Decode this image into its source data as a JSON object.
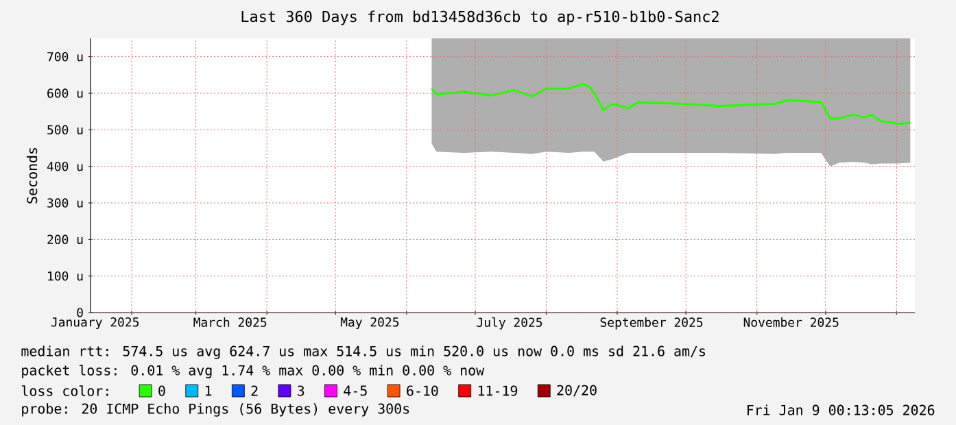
{
  "chart_data": {
    "type": "line",
    "title": "Last 360 Days from bd13458d36cb to ap-r510-b1b0-Sanc2",
    "ylabel": "Seconds",
    "xlim": [
      "2025-01-14",
      "2026-01-09"
    ],
    "xticks": [
      {
        "value": "2025-02-01",
        "label": null
      },
      {
        "value": "2025-03-01",
        "label": null
      },
      {
        "value": "2025-04-01",
        "label": null
      },
      {
        "value": "2025-05-01",
        "label": null
      },
      {
        "value": "2025-06-01",
        "label": null
      },
      {
        "value": "2025-07-01",
        "label": null
      },
      {
        "value": "2025-08-01",
        "label": null
      },
      {
        "value": "2025-09-01",
        "label": null
      },
      {
        "value": "2025-10-01",
        "label": null
      },
      {
        "value": "2025-11-01",
        "label": null
      },
      {
        "value": "2025-12-01",
        "label": null
      },
      {
        "value": "2026-01-01",
        "label": null
      },
      {
        "value": "2025-01-16",
        "label": "January 2025"
      },
      {
        "value": "2025-03-16",
        "label": "March 2025"
      },
      {
        "value": "2025-05-16",
        "label": "May 2025"
      },
      {
        "value": "2025-07-16",
        "label": "July 2025"
      },
      {
        "value": "2025-09-16",
        "label": "September 2025"
      },
      {
        "value": "2025-11-16",
        "label": "November 2025"
      }
    ],
    "ylim": [
      0,
      750
    ],
    "yticks": [
      {
        "value": 0,
        "label": "0"
      },
      {
        "value": 100,
        "label": "100 u"
      },
      {
        "value": 200,
        "label": "200 u"
      },
      {
        "value": 300,
        "label": "300 u"
      },
      {
        "value": 400,
        "label": "400 u"
      },
      {
        "value": 500,
        "label": "500 u"
      },
      {
        "value": 600,
        "label": "600 u"
      },
      {
        "value": 700,
        "label": "700 u"
      }
    ],
    "grid": true,
    "legend": "bottom",
    "legend_title": "loss color:",
    "series": [
      {
        "name": "0",
        "color": "#26ff00",
        "x": [
          "2025-06-12",
          "2025-06-14",
          "2025-06-26",
          "2025-07-08",
          "2025-07-18",
          "2025-07-26",
          "2025-08-01",
          "2025-08-11",
          "2025-08-17",
          "2025-08-20",
          "2025-08-22",
          "2025-08-26",
          "2025-08-30",
          "2025-09-06",
          "2025-09-10",
          "2025-09-30",
          "2025-10-16",
          "2025-11-09",
          "2025-11-14",
          "2025-11-29",
          "2025-12-03",
          "2025-12-07",
          "2025-12-13",
          "2025-12-18",
          "2025-12-21",
          "2025-12-25",
          "2026-01-02",
          "2026-01-07"
        ],
        "values": [
          613,
          597,
          604,
          594,
          609,
          591,
          613,
          613,
          625,
          617,
          600,
          554,
          571,
          559,
          575,
          571,
          565,
          571,
          581,
          576,
          531,
          531,
          541,
          534,
          541,
          524,
          516,
          519
        ],
        "lower": [
          462,
          440,
          437,
          440,
          437,
          434,
          440,
          437,
          440,
          440,
          440,
          413,
          420,
          437,
          437,
          437,
          437,
          434,
          437,
          437,
          400,
          410,
          412,
          410,
          406,
          408,
          408,
          410
        ],
        "upper": [
          750,
          750,
          750,
          750,
          750,
          750,
          750,
          750,
          750,
          750,
          750,
          750,
          750,
          750,
          750,
          750,
          750,
          750,
          750,
          750,
          750,
          750,
          750,
          750,
          750,
          750,
          750,
          750
        ]
      },
      {
        "name": "1",
        "color": "#00b8ff"
      },
      {
        "name": "2",
        "color": "#0059ff"
      },
      {
        "name": "3",
        "color": "#5e00ff"
      },
      {
        "name": "4-5",
        "color": "#ff00ff"
      },
      {
        "name": "6-10",
        "color": "#ff5500"
      },
      {
        "name": "11-19",
        "color": "#ff0000"
      },
      {
        "name": "20/20",
        "color": "#a10000"
      }
    ],
    "annotations": [
      "median rtt: 574.5 us avg 624.7 us max 514.5 us min 520.0 us now 0.0 ms sd 21.6 am/s",
      "packet loss: 0.01 % avg 1.74 % max 0.00 % min 0.00 % now",
      "probe: 20 ICMP Echo Pings (56 Bytes) every 300s",
      "Fri Jan 9 00:13:05 2026"
    ]
  }
}
